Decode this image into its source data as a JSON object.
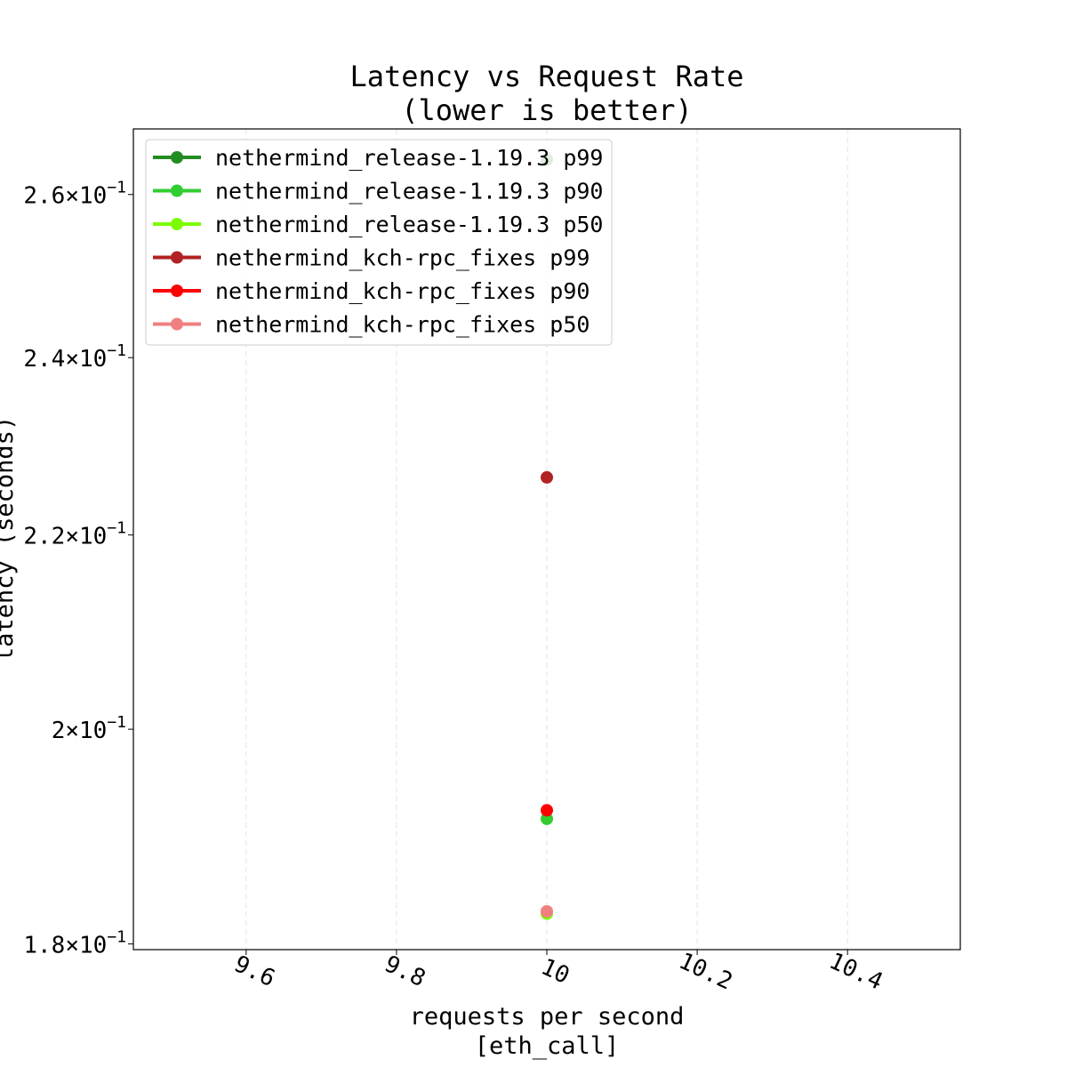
{
  "chart_data": {
    "type": "scatter",
    "title": "Latency vs Request Rate\n(lower is better)",
    "title_lines": [
      "Latency vs Request Rate",
      "(lower is better)"
    ],
    "xlabel": "requests per second\n[eth_call]",
    "xlabel_lines": [
      "requests per second",
      "[eth_call]"
    ],
    "ylabel": "latency (seconds)",
    "xlim": [
      9.45,
      10.55
    ],
    "ylim": [
      0.1795,
      0.2685
    ],
    "yscale": "log",
    "grid": "x-only, dashed",
    "legend_placement": "upper-left",
    "x_ticks": [
      {
        "value": 9.6,
        "label": "9.6"
      },
      {
        "value": 9.8,
        "label": "9.8"
      },
      {
        "value": 10.0,
        "label": "10"
      },
      {
        "value": 10.2,
        "label": "10.2"
      },
      {
        "value": 10.4,
        "label": "10.4"
      }
    ],
    "y_ticks": [
      {
        "value": 0.18,
        "mant": "1.8",
        "exp": "−1"
      },
      {
        "value": 0.2,
        "mant": "2",
        "exp": "−1"
      },
      {
        "value": 0.22,
        "mant": "2.2",
        "exp": "−1"
      },
      {
        "value": 0.24,
        "mant": "2.4",
        "exp": "−1"
      },
      {
        "value": 0.26,
        "mant": "2.6",
        "exp": "−1"
      }
    ],
    "series": [
      {
        "name": "nethermind_release-1.19.3 p99",
        "color": "#228b22",
        "x": [
          10
        ],
        "y": [
          0.2645
        ]
      },
      {
        "name": "nethermind_release-1.19.3 p90",
        "color": "#32cd32",
        "x": [
          10
        ],
        "y": [
          0.1914
        ]
      },
      {
        "name": "nethermind_release-1.19.3 p50",
        "color": "#7cfc00",
        "x": [
          10
        ],
        "y": [
          0.1827
        ]
      },
      {
        "name": "nethermind_kch-rpc_fixes p99",
        "color": "#b22222",
        "x": [
          10
        ],
        "y": [
          0.2263
        ]
      },
      {
        "name": "nethermind_kch-rpc_fixes p90",
        "color": "#ff0000",
        "x": [
          10
        ],
        "y": [
          0.1922
        ]
      },
      {
        "name": "nethermind_kch-rpc_fixes p50",
        "color": "#f08080",
        "x": [
          10
        ],
        "y": [
          0.1829
        ]
      }
    ]
  }
}
